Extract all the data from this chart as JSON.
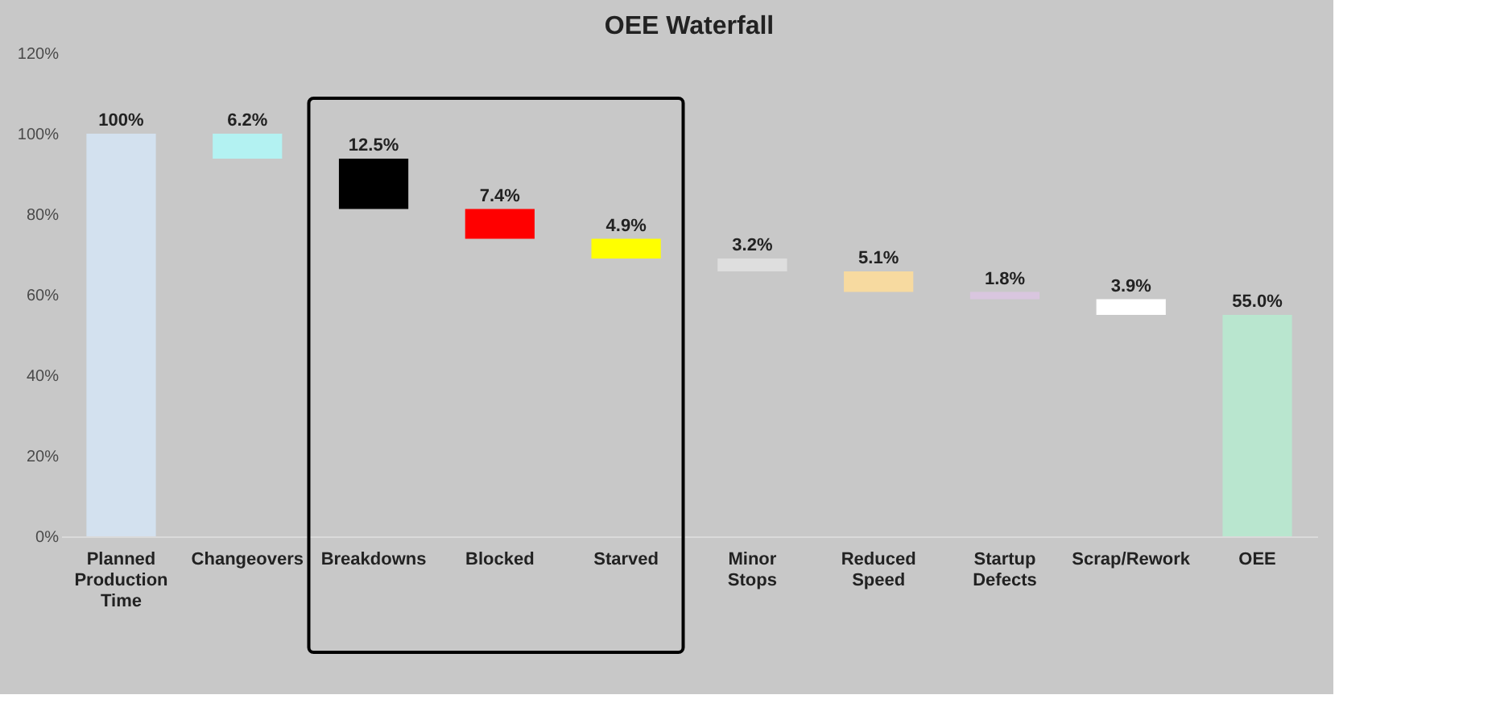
{
  "chart_data": {
    "type": "bar",
    "title": "OEE Waterfall",
    "categories": [
      "Planned Production Time",
      "Changeovers",
      "Breakdowns",
      "Blocked",
      "Starved",
      "Minor Stops",
      "Reduced Speed",
      "Startup Defects",
      "Scrap/Rework",
      "OEE"
    ],
    "values": [
      100,
      6.2,
      12.5,
      7.4,
      4.9,
      3.2,
      5.1,
      1.8,
      3.9,
      55.0
    ],
    "base": [
      0,
      93.8,
      81.3,
      73.9,
      69.0,
      65.8,
      60.7,
      58.9,
      55.0,
      0
    ],
    "colors": [
      "#d3e1ef",
      "#b3f2f2",
      "#000000",
      "#ff0000",
      "#ffff00",
      "#dedede",
      "#f7daa0",
      "#d9c6df",
      "#ffffff",
      "#b9e6cf"
    ],
    "value_labels": [
      "100%",
      "6.2%",
      "12.5%",
      "7.4%",
      "4.9%",
      "3.2%",
      "5.1%",
      "1.8%",
      "3.9%",
      "55.0%"
    ],
    "ylim": [
      0,
      120
    ],
    "yticks": [
      {
        "value": 0,
        "label": "0%"
      },
      {
        "value": 20,
        "label": "20%"
      },
      {
        "value": 40,
        "label": "40%"
      },
      {
        "value": 60,
        "label": "60%"
      },
      {
        "value": 80,
        "label": "80%"
      },
      {
        "value": 100,
        "label": "100%"
      },
      {
        "value": 120,
        "label": "120%"
      }
    ],
    "grid": false
  }
}
